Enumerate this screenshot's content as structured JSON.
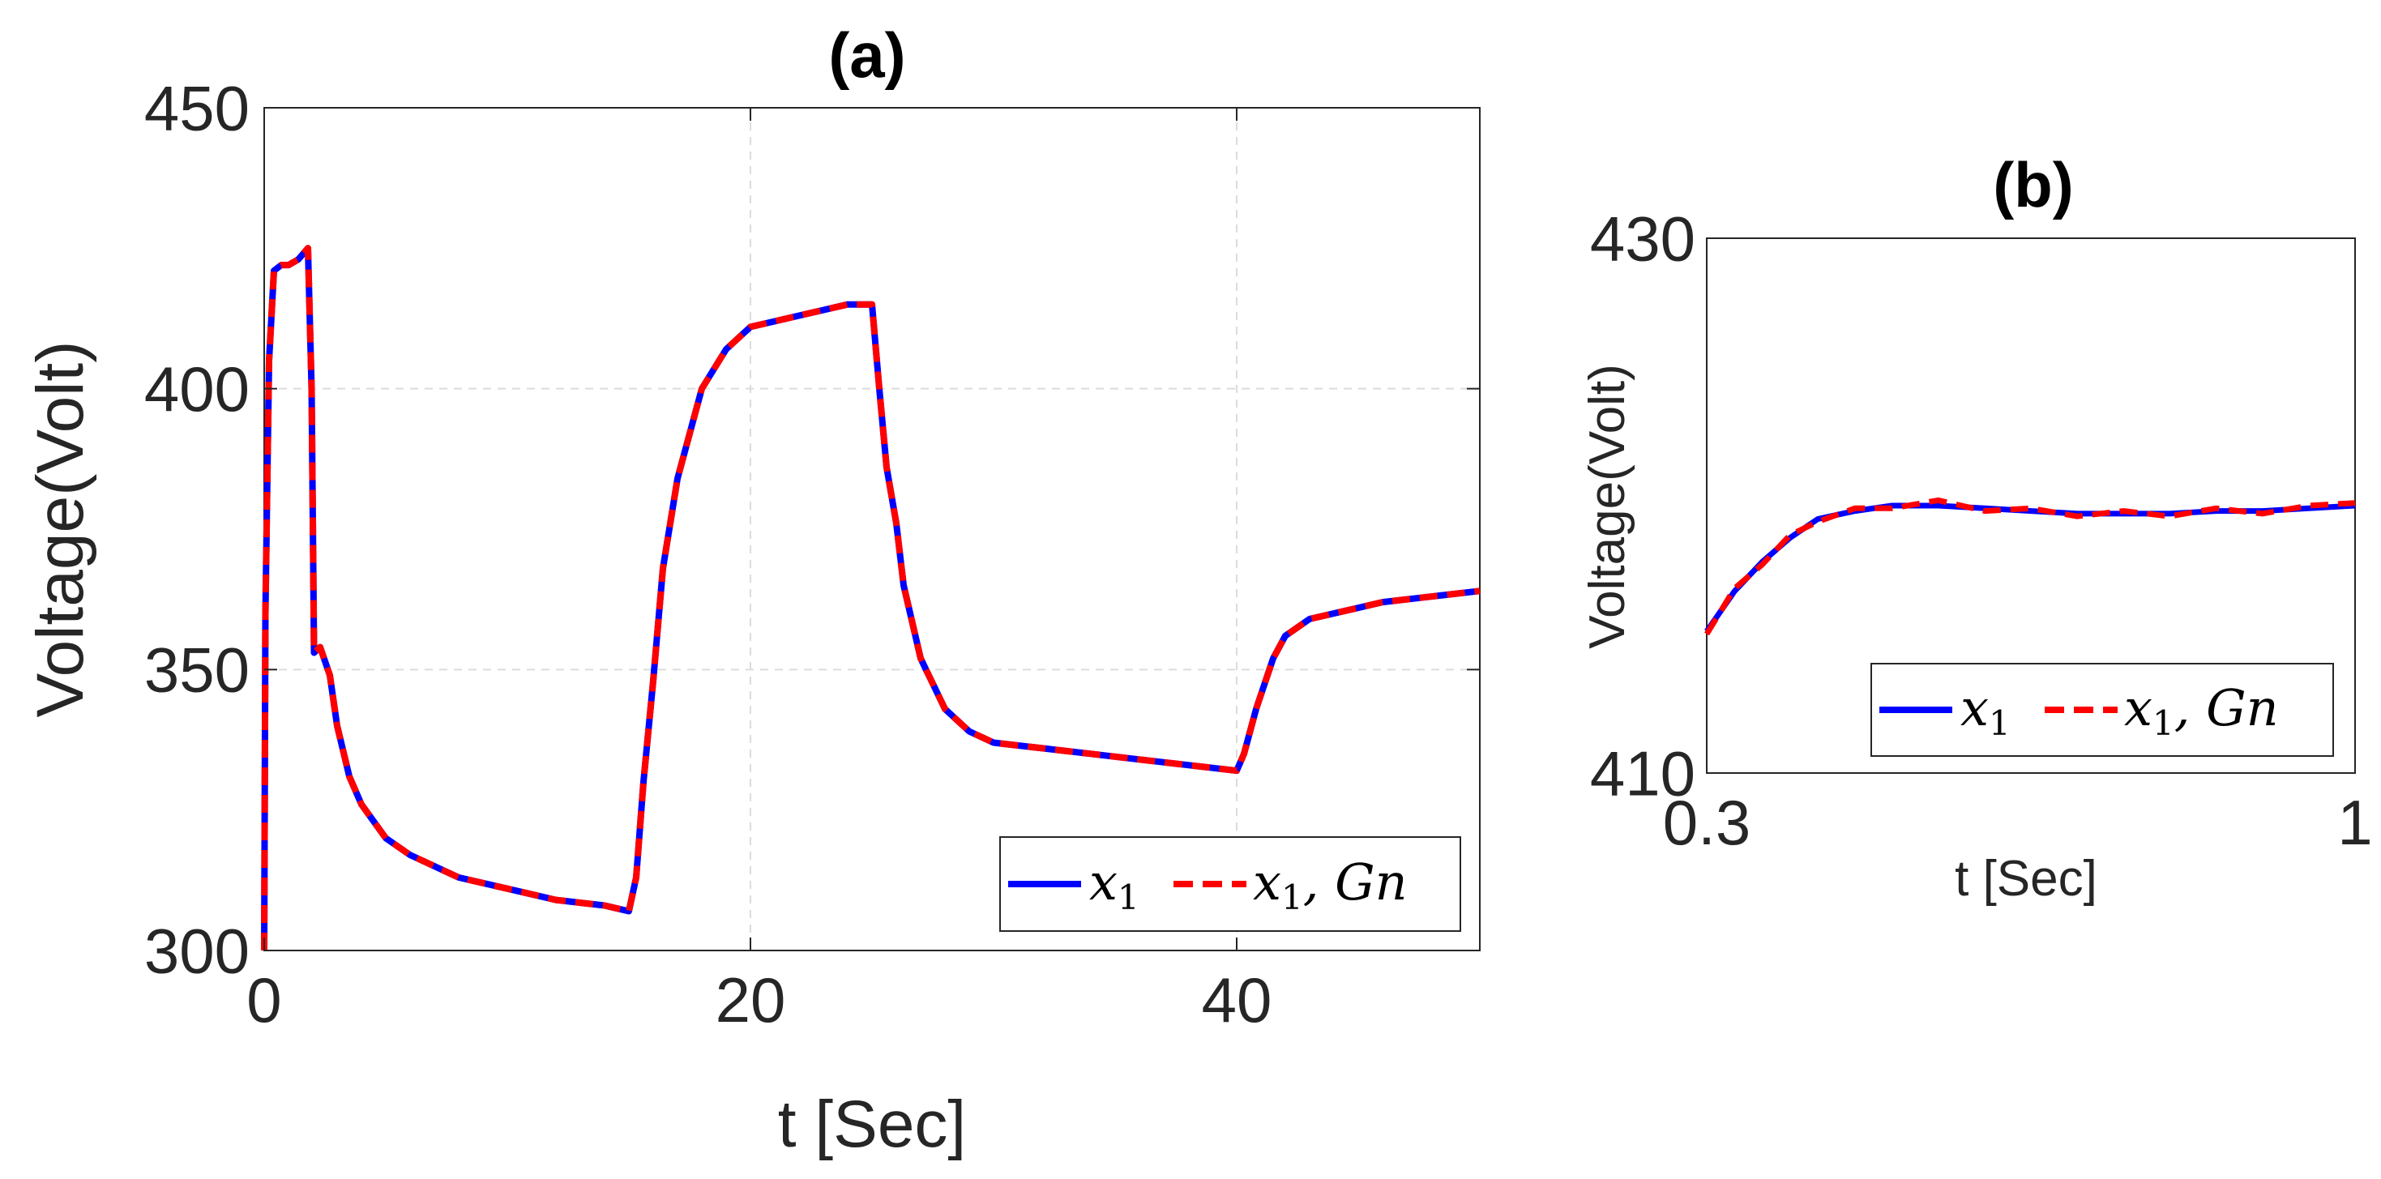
{
  "colors": {
    "series_solid": "#0000ff",
    "series_dashed": "#ff0000",
    "axes": "#262626",
    "grid": "#dcdcdc",
    "background": "#ffffff"
  },
  "chart_data": [
    {
      "id": "a",
      "type": "line",
      "title": "(a)",
      "xlabel": "t [Sec]",
      "ylabel": "Voltage(Volt)",
      "xlim": [
        0,
        50
      ],
      "ylim": [
        300,
        450
      ],
      "xticks": [
        0,
        20,
        40
      ],
      "xtick_labels": [
        "0",
        "20",
        "40"
      ],
      "yticks": [
        300,
        350,
        400,
        450
      ],
      "ytick_labels": [
        "300",
        "350",
        "400",
        "450"
      ],
      "grid": true,
      "legend": {
        "position": "bottom-right",
        "entries": [
          "x",
          "x"
        ],
        "entry_subscripts": [
          "1",
          "1"
        ],
        "entry_suffixes": [
          "",
          ", Gn"
        ]
      },
      "series": [
        {
          "name": "x1",
          "style": "solid",
          "x": [
            0,
            0.05,
            0.2,
            0.4,
            0.7,
            1.0,
            1.4,
            1.8,
            1.95,
            2.05,
            2.3,
            2.7,
            3.0,
            3.5,
            4.0,
            5.0,
            6.0,
            7.0,
            8.0,
            10.0,
            12.0,
            14.0,
            15.0,
            15.3,
            15.6,
            16.0,
            16.4,
            17.0,
            18.0,
            19.0,
            20.0,
            21.0,
            22.0,
            23.0,
            24.0,
            25.0,
            25.3,
            25.6,
            26.0,
            26.3,
            27.0,
            28.0,
            29.0,
            30.0,
            32.0,
            34.0,
            36.0,
            38.0,
            40.0,
            40.3,
            40.8,
            41.5,
            42.0,
            43.0,
            44.0,
            45.0,
            46.0,
            48.0,
            50.0
          ],
          "y": [
            300,
            360,
            405,
            421,
            422,
            422,
            423,
            425,
            400,
            353,
            354,
            349,
            340,
            331,
            326,
            320,
            317,
            315,
            313,
            311,
            309,
            308,
            307,
            313,
            330,
            348,
            368,
            384,
            400,
            407,
            411,
            412,
            413,
            414,
            415,
            415,
            400,
            386,
            376,
            365,
            352,
            343,
            339,
            337,
            336,
            335,
            334,
            333,
            332,
            335,
            343,
            352,
            356,
            359,
            360,
            361,
            362,
            363,
            364
          ]
        },
        {
          "name": "x1, Gn",
          "style": "dashed",
          "x": [
            0,
            0.05,
            0.2,
            0.4,
            0.7,
            1.0,
            1.4,
            1.8,
            1.95,
            2.05,
            2.3,
            2.7,
            3.0,
            3.5,
            4.0,
            5.0,
            6.0,
            7.0,
            8.0,
            10.0,
            12.0,
            14.0,
            15.0,
            15.3,
            15.6,
            16.0,
            16.4,
            17.0,
            18.0,
            19.0,
            20.0,
            21.0,
            22.0,
            23.0,
            24.0,
            25.0,
            25.3,
            25.6,
            26.0,
            26.3,
            27.0,
            28.0,
            29.0,
            30.0,
            32.0,
            34.0,
            36.0,
            38.0,
            40.0,
            40.3,
            40.8,
            41.5,
            42.0,
            43.0,
            44.0,
            45.0,
            46.0,
            48.0,
            50.0
          ],
          "y": [
            300,
            360,
            405,
            421,
            422,
            422,
            423,
            425,
            400,
            353,
            354,
            349,
            340,
            331,
            326,
            320,
            317,
            315,
            313,
            311,
            309,
            308,
            307,
            313,
            330,
            348,
            368,
            384,
            400,
            407,
            411,
            412,
            413,
            414,
            415,
            415,
            400,
            386,
            376,
            365,
            352,
            343,
            339,
            337,
            336,
            335,
            334,
            333,
            332,
            335,
            343,
            352,
            356,
            359,
            360,
            361,
            362,
            363,
            364
          ]
        }
      ]
    },
    {
      "id": "b",
      "type": "line",
      "title": "(b)",
      "xlabel": "t [Sec]",
      "ylabel": "Voltage(Volt)",
      "xlim": [
        0.3,
        1
      ],
      "ylim": [
        410,
        430
      ],
      "xticks": [
        0.3,
        1
      ],
      "xtick_labels": [
        "0.3",
        "1"
      ],
      "yticks": [
        410,
        430
      ],
      "ytick_labels": [
        "410",
        "430"
      ],
      "grid": false,
      "legend": {
        "position": "bottom-right",
        "entries": [
          "x",
          "x"
        ],
        "entry_subscripts": [
          "1",
          "1"
        ],
        "entry_suffixes": [
          "",
          ", Gn"
        ]
      },
      "series": [
        {
          "name": "x1",
          "style": "solid",
          "x": [
            0.3,
            0.33,
            0.36,
            0.39,
            0.42,
            0.46,
            0.5,
            0.55,
            0.6,
            0.65,
            0.7,
            0.75,
            0.8,
            0.85,
            0.9,
            0.95,
            1.0
          ],
          "y": [
            415.3,
            416.8,
            417.9,
            418.8,
            419.5,
            419.8,
            420.0,
            420.0,
            419.9,
            419.8,
            419.7,
            419.7,
            419.7,
            419.8,
            419.8,
            419.9,
            420.0
          ]
        },
        {
          "name": "x1, Gn",
          "style": "dashed",
          "x": [
            0.3,
            0.33,
            0.36,
            0.39,
            0.42,
            0.46,
            0.5,
            0.55,
            0.6,
            0.65,
            0.7,
            0.75,
            0.8,
            0.85,
            0.9,
            0.95,
            1.0
          ],
          "y": [
            415.2,
            416.9,
            417.8,
            418.9,
            419.4,
            419.9,
            419.9,
            420.2,
            419.8,
            419.9,
            419.6,
            419.8,
            419.6,
            419.9,
            419.7,
            420.0,
            420.1
          ]
        }
      ]
    }
  ]
}
